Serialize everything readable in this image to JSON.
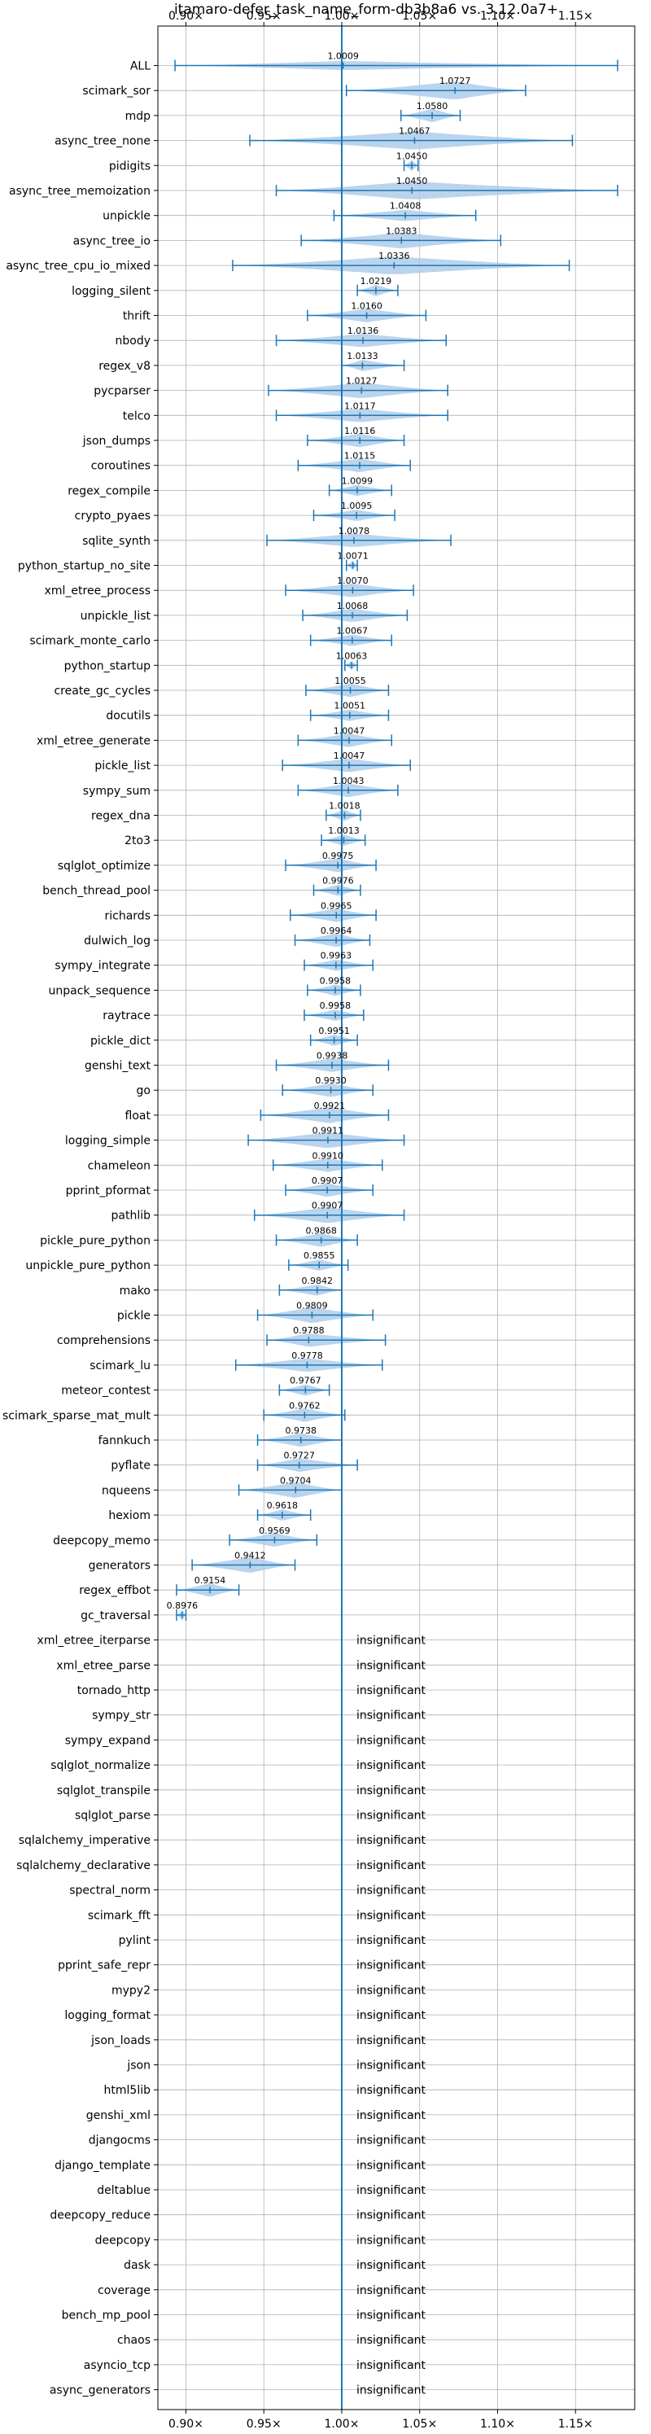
{
  "chart_data": {
    "type": "violin",
    "title": "itamaro-defer_task_name_form-db3b8a6 vs. 3.12.0a7+",
    "xlabel": "",
    "ylabel": "",
    "xlim": [
      0.882,
      1.188
    ],
    "x_ticks": [
      0.9,
      0.95,
      1.0,
      1.05,
      1.1,
      1.15
    ],
    "x_tick_labels": [
      "0.90×",
      "0.95×",
      "1.00×",
      "1.05×",
      "1.10×",
      "1.15×"
    ],
    "reference_line": 1.0,
    "grid": true,
    "colors": {
      "violin": "#a9c9e8",
      "line": "#1f77b4",
      "grid": "#b0b0b0"
    },
    "insignificant_label": "insignificant",
    "benchmarks": [
      {
        "name": "ALL",
        "value": "1.0009",
        "median": 1.0009,
        "min": 0.893,
        "max": 1.177,
        "width": 0.4
      },
      {
        "name": "scimark_sor",
        "value": "1.0727",
        "median": 1.0727,
        "min": 1.003,
        "max": 1.118,
        "width": 0.8
      },
      {
        "name": "mdp",
        "value": "1.0580",
        "median": 1.058,
        "min": 1.038,
        "max": 1.076,
        "width": 0.6
      },
      {
        "name": "async_tree_none",
        "value": "1.0467",
        "median": 1.0467,
        "min": 0.941,
        "max": 1.148,
        "width": 0.8
      },
      {
        "name": "pidigits",
        "value": "1.0450",
        "median": 1.045,
        "min": 1.04,
        "max": 1.049,
        "width": 0.5
      },
      {
        "name": "async_tree_memoization",
        "value": "1.0450",
        "median": 1.045,
        "min": 0.958,
        "max": 1.177,
        "width": 0.8
      },
      {
        "name": "unpickle",
        "value": "1.0408",
        "median": 1.0408,
        "min": 0.995,
        "max": 1.086,
        "width": 0.5
      },
      {
        "name": "async_tree_io",
        "value": "1.0383",
        "median": 1.0383,
        "min": 0.974,
        "max": 1.102,
        "width": 0.7
      },
      {
        "name": "async_tree_cpu_io_mixed",
        "value": "1.0336",
        "median": 1.0336,
        "min": 0.93,
        "max": 1.146,
        "width": 0.8
      },
      {
        "name": "logging_silent",
        "value": "1.0219",
        "median": 1.0219,
        "min": 1.01,
        "max": 1.036,
        "width": 0.5
      },
      {
        "name": "thrift",
        "value": "1.0160",
        "median": 1.016,
        "min": 0.978,
        "max": 1.054,
        "width": 0.6
      },
      {
        "name": "nbody",
        "value": "1.0136",
        "median": 1.0136,
        "min": 0.958,
        "max": 1.067,
        "width": 0.6
      },
      {
        "name": "regex_v8",
        "value": "1.0133",
        "median": 1.0133,
        "min": 1.0,
        "max": 1.04,
        "width": 0.5
      },
      {
        "name": "pycparser",
        "value": "1.0127",
        "median": 1.0127,
        "min": 0.953,
        "max": 1.068,
        "width": 0.7
      },
      {
        "name": "telco",
        "value": "1.0117",
        "median": 1.0117,
        "min": 0.958,
        "max": 1.068,
        "width": 0.6
      },
      {
        "name": "json_dumps",
        "value": "1.0116",
        "median": 1.0116,
        "min": 0.978,
        "max": 1.04,
        "width": 0.6
      },
      {
        "name": "coroutines",
        "value": "1.0115",
        "median": 1.0115,
        "min": 0.972,
        "max": 1.044,
        "width": 0.6
      },
      {
        "name": "regex_compile",
        "value": "1.0099",
        "median": 1.0099,
        "min": 0.992,
        "max": 1.032,
        "width": 0.5
      },
      {
        "name": "crypto_pyaes",
        "value": "1.0095",
        "median": 1.0095,
        "min": 0.982,
        "max": 1.034,
        "width": 0.5
      },
      {
        "name": "sqlite_synth",
        "value": "1.0078",
        "median": 1.0078,
        "min": 0.952,
        "max": 1.07,
        "width": 0.6
      },
      {
        "name": "python_startup_no_site",
        "value": "1.0071",
        "median": 1.0071,
        "min": 1.003,
        "max": 1.01,
        "width": 0.4
      },
      {
        "name": "xml_etree_process",
        "value": "1.0070",
        "median": 1.007,
        "min": 0.964,
        "max": 1.046,
        "width": 0.6
      },
      {
        "name": "unpickle_list",
        "value": "1.0068",
        "median": 1.0068,
        "min": 0.975,
        "max": 1.042,
        "width": 0.6
      },
      {
        "name": "scimark_monte_carlo",
        "value": "1.0067",
        "median": 1.0067,
        "min": 0.98,
        "max": 1.032,
        "width": 0.5
      },
      {
        "name": "python_startup",
        "value": "1.0063",
        "median": 1.0063,
        "min": 1.002,
        "max": 1.01,
        "width": 0.4
      },
      {
        "name": "create_gc_cycles",
        "value": "1.0055",
        "median": 1.0055,
        "min": 0.977,
        "max": 1.03,
        "width": 0.6
      },
      {
        "name": "docutils",
        "value": "1.0051",
        "median": 1.0051,
        "min": 0.98,
        "max": 1.03,
        "width": 0.5
      },
      {
        "name": "xml_etree_generate",
        "value": "1.0047",
        "median": 1.0047,
        "min": 0.972,
        "max": 1.032,
        "width": 0.6
      },
      {
        "name": "pickle_list",
        "value": "1.0047",
        "median": 1.0047,
        "min": 0.962,
        "max": 1.044,
        "width": 0.6
      },
      {
        "name": "sympy_sum",
        "value": "1.0043",
        "median": 1.0043,
        "min": 0.972,
        "max": 1.036,
        "width": 0.6
      },
      {
        "name": "regex_dna",
        "value": "1.0018",
        "median": 1.0018,
        "min": 0.99,
        "max": 1.012,
        "width": 0.5
      },
      {
        "name": "2to3",
        "value": "1.0013",
        "median": 1.0013,
        "min": 0.987,
        "max": 1.015,
        "width": 0.5
      },
      {
        "name": "sqlglot_optimize",
        "value": "0.9975",
        "median": 0.9975,
        "min": 0.964,
        "max": 1.022,
        "width": 0.6
      },
      {
        "name": "bench_thread_pool",
        "value": "0.9976",
        "median": 0.9976,
        "min": 0.982,
        "max": 1.012,
        "width": 0.5
      },
      {
        "name": "richards",
        "value": "0.9965",
        "median": 0.9965,
        "min": 0.967,
        "max": 1.022,
        "width": 0.6
      },
      {
        "name": "dulwich_log",
        "value": "0.9964",
        "median": 0.9964,
        "min": 0.97,
        "max": 1.018,
        "width": 0.6
      },
      {
        "name": "sympy_integrate",
        "value": "0.9963",
        "median": 0.9963,
        "min": 0.976,
        "max": 1.02,
        "width": 0.5
      },
      {
        "name": "unpack_sequence",
        "value": "0.9958",
        "median": 0.9958,
        "min": 0.978,
        "max": 1.012,
        "width": 0.5
      },
      {
        "name": "raytrace",
        "value": "0.9958",
        "median": 0.9958,
        "min": 0.976,
        "max": 1.014,
        "width": 0.5
      },
      {
        "name": "pickle_dict",
        "value": "0.9951",
        "median": 0.9951,
        "min": 0.98,
        "max": 1.01,
        "width": 0.5
      },
      {
        "name": "genshi_text",
        "value": "0.9938",
        "median": 0.9938,
        "min": 0.958,
        "max": 1.03,
        "width": 0.6
      },
      {
        "name": "go",
        "value": "0.9930",
        "median": 0.993,
        "min": 0.962,
        "max": 1.02,
        "width": 0.6
      },
      {
        "name": "float",
        "value": "0.9921",
        "median": 0.9921,
        "min": 0.948,
        "max": 1.03,
        "width": 0.7
      },
      {
        "name": "logging_simple",
        "value": "0.9911",
        "median": 0.9911,
        "min": 0.94,
        "max": 1.04,
        "width": 0.7
      },
      {
        "name": "chameleon",
        "value": "0.9910",
        "median": 0.991,
        "min": 0.956,
        "max": 1.026,
        "width": 0.6
      },
      {
        "name": "pprint_pformat",
        "value": "0.9907",
        "median": 0.9907,
        "min": 0.964,
        "max": 1.02,
        "width": 0.6
      },
      {
        "name": "pathlib",
        "value": "0.9907",
        "median": 0.9907,
        "min": 0.944,
        "max": 1.04,
        "width": 0.7
      },
      {
        "name": "pickle_pure_python",
        "value": "0.9868",
        "median": 0.9868,
        "min": 0.958,
        "max": 1.01,
        "width": 0.6
      },
      {
        "name": "unpickle_pure_python",
        "value": "0.9855",
        "median": 0.9855,
        "min": 0.966,
        "max": 1.004,
        "width": 0.5
      },
      {
        "name": "mako",
        "value": "0.9842",
        "median": 0.9842,
        "min": 0.96,
        "max": 1.0,
        "width": 0.5
      },
      {
        "name": "pickle",
        "value": "0.9809",
        "median": 0.9809,
        "min": 0.946,
        "max": 1.02,
        "width": 0.7
      },
      {
        "name": "comprehensions",
        "value": "0.9788",
        "median": 0.9788,
        "min": 0.952,
        "max": 1.028,
        "width": 0.6
      },
      {
        "name": "scimark_lu",
        "value": "0.9778",
        "median": 0.9778,
        "min": 0.932,
        "max": 1.026,
        "width": 0.6
      },
      {
        "name": "meteor_contest",
        "value": "0.9767",
        "median": 0.9767,
        "min": 0.96,
        "max": 0.992,
        "width": 0.5
      },
      {
        "name": "scimark_sparse_mat_mult",
        "value": "0.9762",
        "median": 0.9762,
        "min": 0.95,
        "max": 1.002,
        "width": 0.6
      },
      {
        "name": "fannkuch",
        "value": "0.9738",
        "median": 0.9738,
        "min": 0.946,
        "max": 1.0,
        "width": 0.6
      },
      {
        "name": "pyflate",
        "value": "0.9727",
        "median": 0.9727,
        "min": 0.946,
        "max": 1.01,
        "width": 0.6
      },
      {
        "name": "nqueens",
        "value": "0.9704",
        "median": 0.9704,
        "min": 0.934,
        "max": 1.0,
        "width": 0.7
      },
      {
        "name": "hexiom",
        "value": "0.9618",
        "median": 0.9618,
        "min": 0.946,
        "max": 0.98,
        "width": 0.5
      },
      {
        "name": "deepcopy_memo",
        "value": "0.9569",
        "median": 0.9569,
        "min": 0.928,
        "max": 0.984,
        "width": 0.6
      },
      {
        "name": "generators",
        "value": "0.9412",
        "median": 0.9412,
        "min": 0.904,
        "max": 0.97,
        "width": 0.7
      },
      {
        "name": "regex_effbot",
        "value": "0.9154",
        "median": 0.9154,
        "min": 0.894,
        "max": 0.934,
        "width": 0.6
      },
      {
        "name": "gc_traversal",
        "value": "0.8976",
        "median": 0.8976,
        "min": 0.894,
        "max": 0.9,
        "width": 0.5
      },
      {
        "name": "xml_etree_iterparse",
        "value": "insignificant"
      },
      {
        "name": "xml_etree_parse",
        "value": "insignificant"
      },
      {
        "name": "tornado_http",
        "value": "insignificant"
      },
      {
        "name": "sympy_str",
        "value": "insignificant"
      },
      {
        "name": "sympy_expand",
        "value": "insignificant"
      },
      {
        "name": "sqlglot_normalize",
        "value": "insignificant"
      },
      {
        "name": "sqlglot_transpile",
        "value": "insignificant"
      },
      {
        "name": "sqlglot_parse",
        "value": "insignificant"
      },
      {
        "name": "sqlalchemy_imperative",
        "value": "insignificant"
      },
      {
        "name": "sqlalchemy_declarative",
        "value": "insignificant"
      },
      {
        "name": "spectral_norm",
        "value": "insignificant"
      },
      {
        "name": "scimark_fft",
        "value": "insignificant"
      },
      {
        "name": "pylint",
        "value": "insignificant"
      },
      {
        "name": "pprint_safe_repr",
        "value": "insignificant"
      },
      {
        "name": "mypy2",
        "value": "insignificant"
      },
      {
        "name": "logging_format",
        "value": "insignificant"
      },
      {
        "name": "json_loads",
        "value": "insignificant"
      },
      {
        "name": "json",
        "value": "insignificant"
      },
      {
        "name": "html5lib",
        "value": "insignificant"
      },
      {
        "name": "genshi_xml",
        "value": "insignificant"
      },
      {
        "name": "djangocms",
        "value": "insignificant"
      },
      {
        "name": "django_template",
        "value": "insignificant"
      },
      {
        "name": "deltablue",
        "value": "insignificant"
      },
      {
        "name": "deepcopy_reduce",
        "value": "insignificant"
      },
      {
        "name": "deepcopy",
        "value": "insignificant"
      },
      {
        "name": "dask",
        "value": "insignificant"
      },
      {
        "name": "coverage",
        "value": "insignificant"
      },
      {
        "name": "bench_mp_pool",
        "value": "insignificant"
      },
      {
        "name": "chaos",
        "value": "insignificant"
      },
      {
        "name": "asyncio_tcp",
        "value": "insignificant"
      },
      {
        "name": "async_generators",
        "value": "insignificant"
      }
    ]
  }
}
